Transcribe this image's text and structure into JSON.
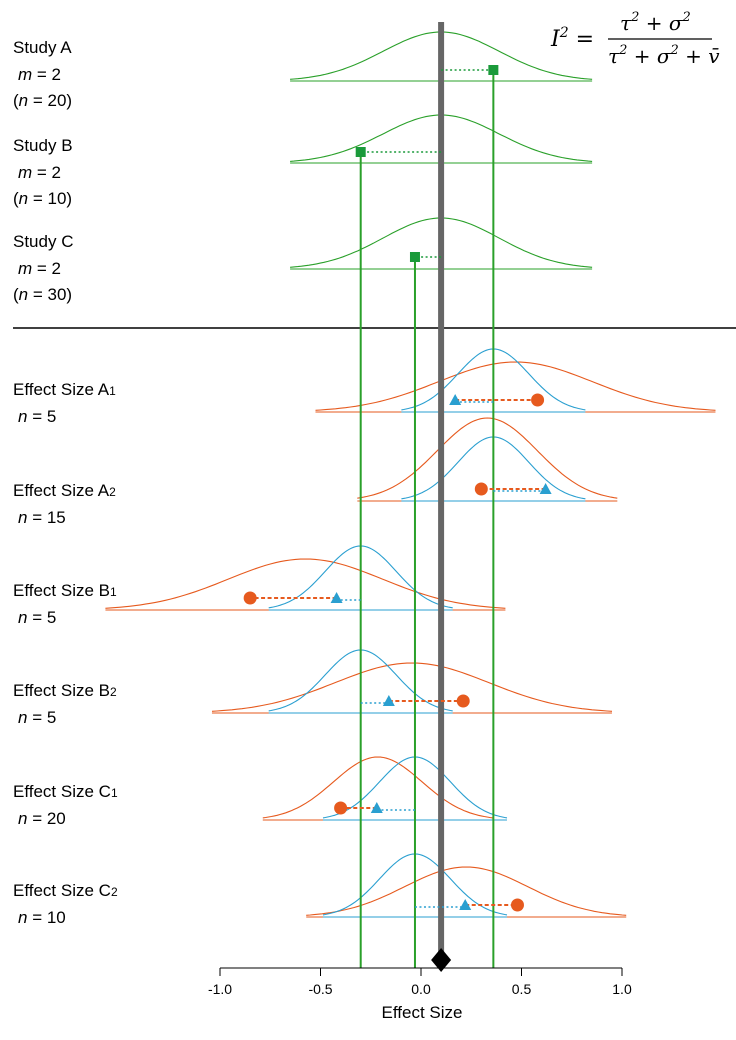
{
  "chart_data": {
    "type": "diagram",
    "formula": {
      "lhs": "I",
      "lhs_sup": "2",
      "numerator": [
        "τ",
        "2",
        " + ",
        "σ",
        "2"
      ],
      "denominator": [
        "τ",
        "2",
        " + ",
        "σ",
        "2",
        " + ",
        "v̄"
      ]
    },
    "xlabel": "Effect Size",
    "xlim": [
      -1.0,
      1.0
    ],
    "ticks": [
      {
        "v": -1.0,
        "label": "-1.0"
      },
      {
        "v": -0.5,
        "label": "-0.5"
      },
      {
        "v": 0.0,
        "label": "0.0"
      },
      {
        "v": 0.5,
        "label": "0.5"
      },
      {
        "v": 1.0,
        "label": "1.0"
      }
    ],
    "overall_effect": 0.1,
    "studies": [
      {
        "name": "Study A",
        "m_label": "m",
        "m_value": " = 2",
        "n_label": "n",
        "n_value": " = 20)",
        "estimate": 0.36
      },
      {
        "name": "Study B",
        "m_label": "m",
        "m_value": " = 2",
        "n_label": "n",
        "n_value": " = 10)",
        "estimate": -0.3
      },
      {
        "name": "Study C",
        "m_label": "m",
        "m_value": " = 2",
        "n_label": "n",
        "n_value": " = 30)",
        "estimate": -0.03
      }
    ],
    "effect_sizes": [
      {
        "name": "Effect Size A",
        "sub": "1",
        "n_label": "n",
        "n_value": " = 5",
        "study_estimate": 0.36,
        "estimate": 0.58,
        "adjusted": 0.17
      },
      {
        "name": "Effect Size A",
        "sub": "2",
        "n_label": "n",
        "n_value": " = 15",
        "study_estimate": 0.36,
        "estimate": 0.3,
        "adjusted": 0.62
      },
      {
        "name": "Effect Size B",
        "sub": "1",
        "n_label": "n",
        "n_value": " = 5",
        "study_estimate": -0.3,
        "estimate": -0.85,
        "adjusted": -0.42
      },
      {
        "name": "Effect Size B",
        "sub": "2",
        "n_label": "n",
        "n_value": " = 5",
        "study_estimate": -0.3,
        "estimate": 0.21,
        "adjusted": -0.16
      },
      {
        "name": "Effect Size C",
        "sub": "1",
        "n_label": "n",
        "n_value": " = 20",
        "study_estimate": -0.03,
        "estimate": -0.4,
        "adjusted": -0.22
      },
      {
        "name": "Effect Size C",
        "sub": "2",
        "n_label": "n",
        "n_value": " = 10",
        "study_estimate": -0.03,
        "estimate": 0.48,
        "adjusted": 0.22
      }
    ],
    "colors": {
      "study": "#2aa02a",
      "study_marker": "#1a9a3a",
      "overall": "#666666",
      "effect": "#e65a1e",
      "adjusted": "#2a9fd0",
      "axis": "#000000"
    }
  }
}
